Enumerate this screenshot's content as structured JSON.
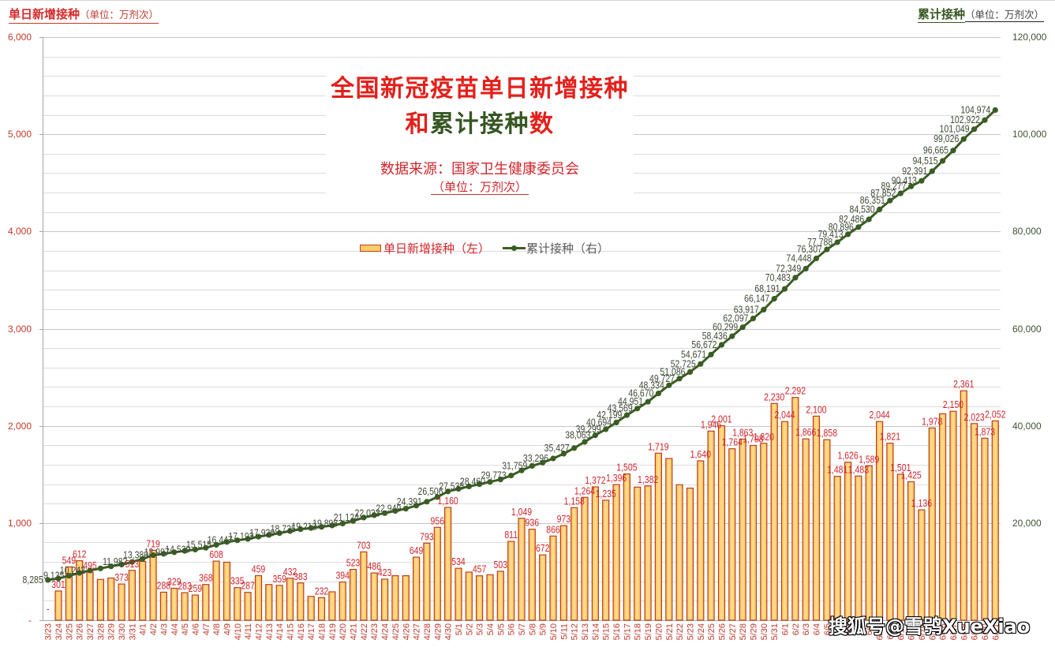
{
  "header": {
    "left_title": "单日新增接种",
    "left_unit": "（单位：万剂次）",
    "right_title": "累计接种",
    "right_unit": "（单位：万剂次）"
  },
  "title": {
    "line1": "全国新冠疫苗单日新增接种",
    "line2_part1": "和",
    "line2_part2": "累计接种",
    "line2_part3": "数",
    "source": "数据来源：国家卫生健康委员会",
    "unit": "（单位：万剂次）"
  },
  "legend": {
    "bar_label": "单日新增接种（左）",
    "line_label": "累计接种（右）"
  },
  "watermark": "搜狐号@雪鸮XueXiao",
  "colors": {
    "title_red": "#e3201b",
    "title_green": "#375623",
    "bar_fill": "#ffdd99",
    "bar_fill_edge": "#ffbf47",
    "bar_border": "#b8401e",
    "bar_label": "#d0262c",
    "line": "#3a5d23",
    "line_label": "#3e4a36",
    "x_label": "#c0392b",
    "axis": "#a6a6a6",
    "grid_major": "#c6c6c6",
    "grid_minor": "#dcdcdc"
  },
  "chart_data": {
    "type": "bar",
    "title": "全国新冠疫苗单日新增接种和累计接种数",
    "subtitle": "数据来源：国家卫生健康委员会（单位：万剂次）",
    "xlabel": "",
    "ylabel": "单日新增接种（单位：万剂次）",
    "y2label": "累计接种（单位：万剂次）",
    "legend_position": "top-center",
    "grid": true,
    "left_axis": {
      "min": 0,
      "max": 6000,
      "major_step": 1000,
      "minor_step": 200,
      "tick_labels": [
        "6,000",
        "5,000",
        "4,000",
        "3,000",
        "2,000",
        "1,000",
        "-"
      ]
    },
    "right_axis": {
      "min": 0,
      "max": 120000,
      "major_step": 20000,
      "tick_labels": [
        "120,000",
        "100,000",
        "80,000",
        "60,000",
        "40,000",
        "20,000"
      ]
    },
    "categories": [
      "3/23",
      "3/24",
      "3/25",
      "3/26",
      "3/27",
      "3/28",
      "3/29",
      "3/30",
      "3/31",
      "4/1",
      "4/2",
      "4/3",
      "4/4",
      "4/5",
      "4/6",
      "4/7",
      "4/8",
      "4/9",
      "4/10",
      "4/11",
      "4/12",
      "4/13",
      "4/14",
      "4/15",
      "4/16",
      "4/17",
      "4/18",
      "4/19",
      "4/20",
      "4/21",
      "4/22",
      "4/23",
      "4/24",
      "4/25",
      "4/26",
      "4/27",
      "4/28",
      "4/29",
      "4/30",
      "5/1",
      "5/2",
      "5/3",
      "5/4",
      "5/5",
      "5/6",
      "5/7",
      "5/8",
      "5/9",
      "5/10",
      "5/11",
      "5/12",
      "5/13",
      "5/14",
      "5/15",
      "5/16",
      "5/17",
      "5/18",
      "5/19",
      "5/20",
      "5/21",
      "5/22",
      "5/23",
      "5/24",
      "5/25",
      "5/26",
      "5/27",
      "5/28",
      "5/29",
      "5/30",
      "5/31",
      "6/1",
      "6/2",
      "6/3",
      "6/4",
      "6/5",
      "6/6",
      "6/7",
      "6/8",
      "6/9",
      "6/10",
      "6/11",
      "6/12",
      "6/13",
      "6/14",
      "6/15",
      "6/16",
      "6/17",
      "6/18",
      "6/19",
      "6/20",
      "6/21"
    ],
    "series": [
      {
        "name": "单日新增接种（左）",
        "type": "bar",
        "axis": "left",
        "null_label": "-",
        "values": [
          null,
          301,
          549,
          612,
          495,
          420,
          434,
          373,
          513,
          605,
          719,
          288,
          329,
          283,
          259,
          368,
          608,
          597,
          335,
          287,
          459,
          368,
          359,
          432,
          383,
          245,
          232,
          292,
          394,
          523,
          703,
          486,
          423,
          458,
          458,
          649,
          793,
          956,
          1160,
          534,
          495,
          457,
          468,
          503,
          811,
          1049,
          936,
          672,
          866,
          973,
          1158,
          1264,
          1372,
          1235,
          1396,
          1505,
          1370,
          1382,
          1719,
          1664,
          1393,
          1359,
          1640,
          1946,
          2001,
          1764,
          1863,
          1798,
          1820,
          2230,
          2044,
          2292,
          1866,
          2100,
          1858,
          1481,
          1626,
          1483,
          1589,
          2044,
          1821,
          1501,
          1425,
          1136,
          1978,
          2124,
          2150,
          2361,
          2023,
          1873,
          2052
        ],
        "labels_hidden_idx": [
          5,
          6,
          9,
          17,
          21,
          25,
          27,
          33,
          34,
          40,
          42,
          56,
          59,
          60,
          61,
          85
        ]
      },
      {
        "name": "累计接种（右）",
        "type": "line",
        "axis": "right",
        "values": [
          8285,
          8586,
          9135,
          9747,
          10242,
          10662,
          11096,
          11469,
          11982,
          12620,
          13380,
          13668,
          13997,
          14280,
          14539,
          14907,
          15515,
          16112,
          16447,
          16734,
          17193,
          17561,
          17920,
          18352,
          18735,
          18980,
          19212,
          19504,
          19898,
          20421,
          21124,
          21610,
          22033,
          22491,
          22949,
          23598,
          24391,
          25347,
          26506,
          27040,
          27535,
          27992,
          28460,
          28963,
          29773,
          30822,
          31759,
          32431,
          33296,
          34269,
          35427,
          36691,
          38063,
          39299,
          40694,
          42199,
          43569,
          44951,
          46670,
          48334,
          49727,
          51086,
          52725,
          54671,
          56672,
          58436,
          60299,
          62097,
          63917,
          66147,
          68191,
          70483,
          72349,
          74448,
          76307,
          77788,
          79413,
          80896,
          82486,
          84530,
          86351,
          87852,
          89277,
          90413,
          92391,
          94515,
          96665,
          99026,
          101049,
          102922,
          104974
        ],
        "labels_visible_idx": [
          0,
          2,
          4,
          8,
          10,
          12,
          14,
          16,
          18,
          20,
          22,
          24,
          26,
          28,
          30,
          32,
          34,
          36,
          38,
          40,
          42,
          44,
          46,
          48,
          50,
          52,
          53,
          54,
          55,
          56,
          57,
          58,
          59,
          60,
          61,
          62,
          63,
          64,
          65,
          66,
          67,
          68,
          69,
          70,
          71,
          72,
          73,
          74,
          75,
          76,
          77,
          78,
          79,
          80,
          81,
          82,
          83,
          84,
          85,
          86,
          87,
          88,
          89,
          90
        ]
      }
    ]
  }
}
